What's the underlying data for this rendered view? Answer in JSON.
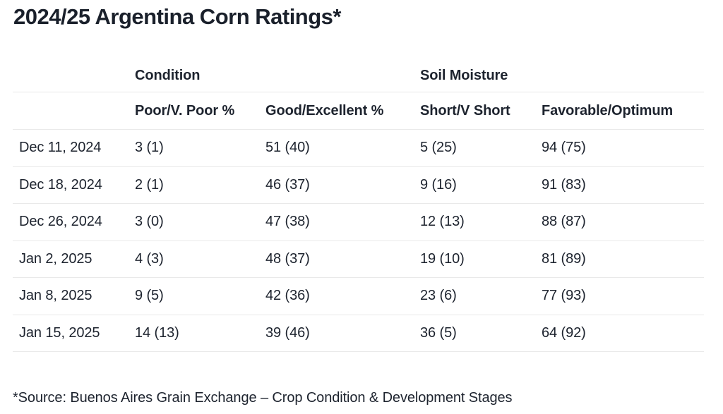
{
  "page": {
    "background": "#ffffff",
    "text_color": "#1d232e",
    "border_color": "#e9e9e9"
  },
  "chart_data": {
    "type": "table",
    "title": "2024/25 Argentina Corn Ratings*",
    "column_groups": [
      "",
      "Condition",
      "Soil Moisture"
    ],
    "columns": [
      "",
      "Poor/V. Poor %",
      "Good/Excellent %",
      "Short/V Short",
      "Favorable/Optimum"
    ],
    "rows": [
      [
        "Dec 11, 2024",
        "3 (1)",
        "51 (40)",
        "5 (25)",
        "94 (75)"
      ],
      [
        "Dec 18, 2024",
        "2 (1)",
        "46 (37)",
        "9 (16)",
        "91 (83)"
      ],
      [
        "Dec 26, 2024",
        "3 (0)",
        "47 (38)",
        "12 (13)",
        "88 (87)"
      ],
      [
        "Jan 2, 2025",
        "4 (3)",
        "48 (37)",
        "19 (10)",
        "81 (89)"
      ],
      [
        "Jan 8, 2025",
        "9 (5)",
        "42 (36)",
        "23 (6)",
        "77 (93)"
      ],
      [
        "Jan 15, 2025",
        "14 (13)",
        "39 (46)",
        "36 (5)",
        "64 (92)"
      ]
    ],
    "footnote": "*Source: Buenos Aires Grain Exchange – Crop Condition & Development Stages",
    "layout": {
      "grid": "horizontal-row-dividers-only",
      "legend": "none",
      "header_style": "two-tier-grouped-columns"
    }
  }
}
